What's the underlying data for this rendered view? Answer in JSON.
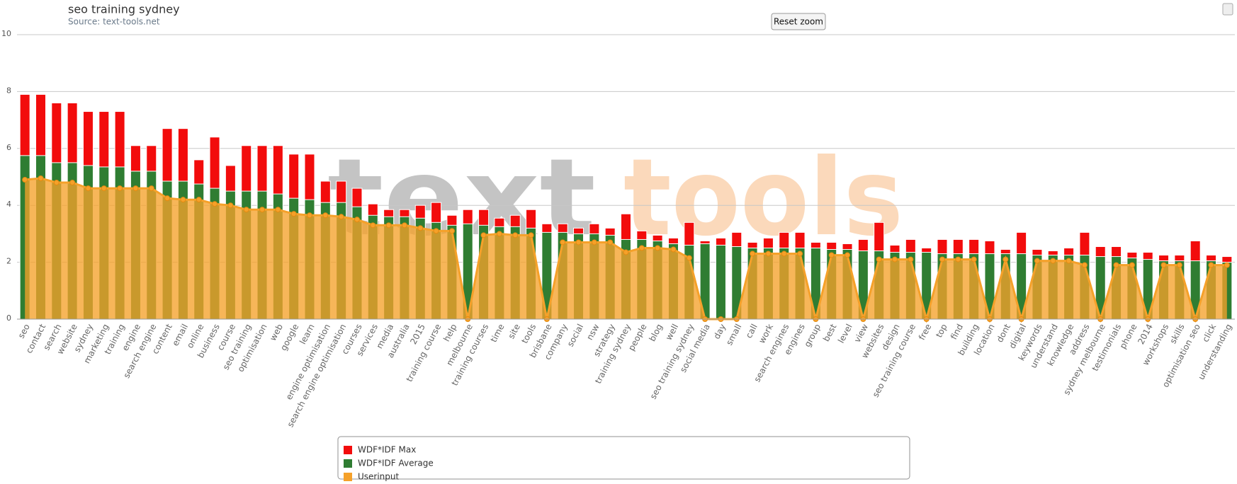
{
  "chart_data": {
    "type": "bar",
    "title": "seo training sydney",
    "subtitle": "Source: text-tools.net",
    "button": "Reset zoom",
    "watermark": [
      "text",
      "tools"
    ],
    "categories": [
      "seo",
      "contact",
      "search",
      "website",
      "sydney",
      "marketing",
      "training",
      "engine",
      "search engine",
      "content",
      "email",
      "online",
      "business",
      "course",
      "seo training",
      "optimisation",
      "web",
      "google",
      "learn",
      "engine optimisation",
      "search engine optimisation",
      "courses",
      "services",
      "media",
      "australia",
      "2015",
      "training course",
      "help",
      "melbourne",
      "training courses",
      "time",
      "site",
      "tools",
      "brisbane",
      "company",
      "social",
      "nsw",
      "strategy",
      "training sydney",
      "people",
      "blog",
      "well",
      "seo training sydney",
      "social media",
      "day",
      "small",
      "call",
      "work",
      "search engines",
      "engines",
      "group",
      "best",
      "level",
      "view",
      "websites",
      "design",
      "seo training course",
      "free",
      "top",
      "find",
      "building",
      "location",
      "dont",
      "digital",
      "keywords",
      "understand",
      "knowledge",
      "address",
      "sydney melbourne",
      "testimonials",
      "phone",
      "2014",
      "workshops",
      "skills",
      "optimisation seo",
      "click",
      "understanding"
    ],
    "series": [
      {
        "name": "WDF*IDF Max",
        "color": "#f20c0c",
        "type": "bar",
        "values": [
          7.9,
          7.9,
          7.6,
          7.6,
          7.3,
          7.3,
          7.3,
          6.1,
          6.1,
          6.7,
          6.7,
          5.6,
          6.4,
          5.4,
          6.1,
          6.1,
          6.1,
          5.8,
          5.8,
          4.85,
          4.85,
          4.6,
          4.05,
          3.85,
          3.85,
          4.0,
          4.1,
          3.65,
          3.85,
          3.85,
          3.55,
          3.65,
          3.85,
          3.35,
          3.35,
          3.2,
          3.35,
          3.2,
          3.7,
          3.1,
          2.95,
          2.85,
          3.4,
          2.75,
          2.85,
          3.05,
          2.7,
          2.85,
          3.05,
          3.05,
          2.7,
          2.7,
          2.65,
          2.8,
          3.4,
          2.6,
          2.8,
          2.5,
          2.8,
          2.8,
          2.8,
          2.75,
          2.45,
          3.05,
          2.45,
          2.4,
          2.5,
          3.05,
          2.55,
          2.55,
          2.35,
          2.35,
          2.25,
          2.25,
          2.75,
          2.25,
          2.2
        ]
      },
      {
        "name": "WDF*IDF Average",
        "color": "#2f7d32",
        "type": "bar",
        "values": [
          5.75,
          5.75,
          5.5,
          5.5,
          5.4,
          5.35,
          5.35,
          5.2,
          5.2,
          4.85,
          4.85,
          4.75,
          4.6,
          4.5,
          4.5,
          4.5,
          4.4,
          4.25,
          4.2,
          4.1,
          4.1,
          3.95,
          3.65,
          3.6,
          3.6,
          3.55,
          3.4,
          3.3,
          3.35,
          3.3,
          3.25,
          3.25,
          3.2,
          3.05,
          3.05,
          3.0,
          3.0,
          2.95,
          2.8,
          2.8,
          2.75,
          2.65,
          2.6,
          2.65,
          2.6,
          2.55,
          2.5,
          2.5,
          2.5,
          2.5,
          2.5,
          2.45,
          2.45,
          2.4,
          2.4,
          2.35,
          2.35,
          2.35,
          2.3,
          2.3,
          2.3,
          2.3,
          2.3,
          2.3,
          2.25,
          2.25,
          2.25,
          2.25,
          2.2,
          2.2,
          2.15,
          2.1,
          2.05,
          2.05,
          2.05,
          2.05,
          2.0
        ]
      },
      {
        "name": "Userinput",
        "color": "#f5a12a",
        "type": "area",
        "values": [
          4.9,
          4.95,
          4.8,
          4.8,
          4.6,
          4.6,
          4.6,
          4.6,
          4.6,
          4.25,
          4.2,
          4.2,
          4.05,
          4.0,
          3.85,
          3.85,
          3.85,
          3.7,
          3.65,
          3.65,
          3.6,
          3.5,
          3.3,
          3.3,
          3.3,
          3.2,
          3.1,
          3.1,
          0,
          2.95,
          3.0,
          2.95,
          2.95,
          0,
          2.7,
          2.7,
          2.7,
          2.7,
          2.35,
          2.5,
          2.5,
          2.45,
          2.15,
          0,
          0,
          0,
          2.3,
          2.3,
          2.3,
          2.3,
          0,
          2.25,
          2.25,
          0,
          2.1,
          2.1,
          2.1,
          0,
          2.1,
          2.1,
          2.1,
          0,
          2.1,
          0,
          2.05,
          2.05,
          2.05,
          1.9,
          0,
          1.9,
          1.9,
          0,
          1.9,
          1.9,
          0,
          1.9,
          1.9
        ]
      }
    ],
    "ylim": [
      0,
      10
    ],
    "yticks": [
      0,
      2,
      4,
      6,
      8,
      10
    ],
    "grid": true
  }
}
